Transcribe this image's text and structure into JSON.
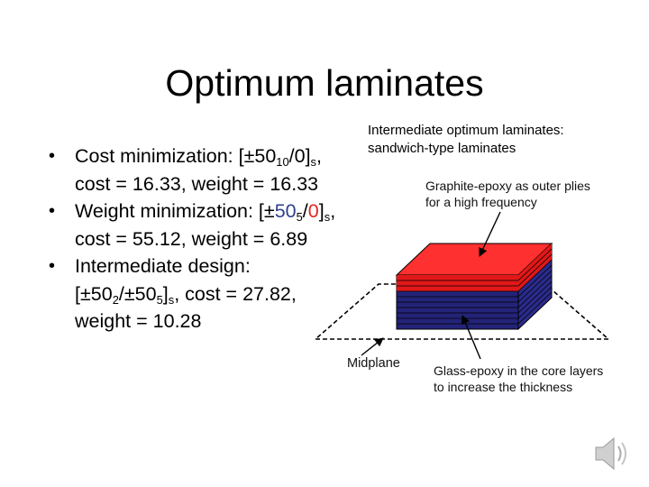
{
  "title": "Optimum laminates",
  "bullets": [
    {
      "lines": [
        [
          {
            "t": "Cost minimization: [±50"
          },
          {
            "t": "10",
            "sub": true
          },
          {
            "t": "/0]"
          },
          {
            "t": "s",
            "sub": true
          },
          {
            "t": ","
          }
        ],
        [
          {
            "t": "cost = 16.33, weight = 16.33"
          }
        ]
      ]
    },
    {
      "lines": [
        [
          {
            "t": "Weight minimization: [±"
          },
          {
            "t": "50",
            "color": "blue"
          },
          {
            "t": "5",
            "sub": true
          },
          {
            "t": "/"
          },
          {
            "t": "0",
            "color": "red"
          },
          {
            "t": "]"
          },
          {
            "t": "s",
            "sub": true
          },
          {
            "t": ","
          }
        ],
        [
          {
            "t": "cost = 55.12, weight = 6.89"
          }
        ]
      ]
    },
    {
      "lines": [
        [
          {
            "t": "Intermediate design:"
          }
        ],
        [
          {
            "t": "[±50"
          },
          {
            "t": "2",
            "sub": true
          },
          {
            "t": "/±50"
          },
          {
            "t": "5",
            "sub": true
          },
          {
            "t": "]"
          },
          {
            "t": "s",
            "sub": true
          },
          {
            "t": ", cost = 27.82,"
          }
        ],
        [
          {
            "t": "weight = 10.28"
          }
        ]
      ]
    }
  ],
  "diagram": {
    "heading_line1": "Intermediate optimum laminates:",
    "heading_line2": "sandwich-type laminates",
    "outer_note_line1": "Graphite-epoxy as outer plies",
    "outer_note_line2": "for a high frequency",
    "midplane_label": "Midplane",
    "core_note_line1": "Glass-epoxy in the core layers",
    "core_note_line2": "to increase the thickness",
    "colors": {
      "graphite_top": "#ff3030",
      "graphite_side": "#e01818",
      "glass_side": "#2b2b8c",
      "glass_front": "#232378"
    }
  },
  "speaker_icon": "speaker-icon"
}
